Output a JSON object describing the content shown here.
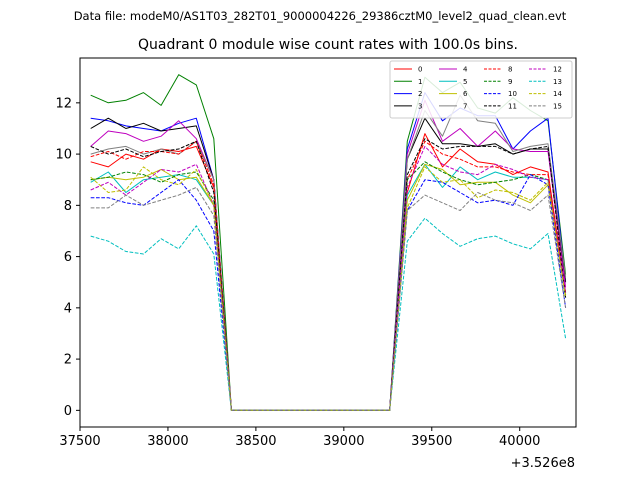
{
  "header_text": "Data file: modeM0/AS1T03_282T01_9000004226_29386cztM0_level2_quad_clean.evt",
  "chart_data": {
    "type": "line",
    "title": "Quadrant 0 module wise count rates with 100.0s bins.",
    "xlabel": "",
    "ylabel": "",
    "x_offset_label": "+3.526e8",
    "xlim": [
      37500,
      40320
    ],
    "ylim": [
      -0.65,
      13.75
    ],
    "xticks": [
      37500,
      38000,
      38500,
      39000,
      39500,
      40000
    ],
    "yticks": [
      0,
      2,
      4,
      6,
      8,
      10,
      12
    ],
    "legend_position": "top-right",
    "grid": false,
    "x": [
      37561,
      37661,
      37761,
      37861,
      37961,
      38061,
      38161,
      38261,
      38361,
      38461,
      38561,
      38661,
      38761,
      38861,
      38961,
      39061,
      39161,
      39261,
      39361,
      39461,
      39561,
      39661,
      39761,
      39861,
      39961,
      40061,
      40161,
      40261
    ],
    "series": [
      {
        "name": "0",
        "color": "#ff0000",
        "dash": "solid",
        "values": [
          9.7,
          9.5,
          10.0,
          9.8,
          10.2,
          10.1,
          10.3,
          8.7,
          0,
          0,
          0,
          0,
          0,
          0,
          0,
          0,
          0,
          0,
          8.5,
          10.8,
          9.5,
          10.2,
          9.7,
          9.6,
          9.2,
          9.5,
          9.3,
          4.6
        ]
      },
      {
        "name": "1",
        "color": "#008000",
        "dash": "solid",
        "values": [
          12.3,
          12.0,
          12.1,
          12.4,
          11.9,
          13.1,
          12.7,
          10.6,
          0,
          0,
          0,
          0,
          0,
          0,
          0,
          0,
          0,
          0,
          10.5,
          13.0,
          12.4,
          12.8,
          11.8,
          11.6,
          12.2,
          11.7,
          11.3,
          5.3
        ]
      },
      {
        "name": "2",
        "color": "#0000ff",
        "dash": "solid",
        "values": [
          11.4,
          11.3,
          11.1,
          11.0,
          10.9,
          11.2,
          11.4,
          9.0,
          0,
          0,
          0,
          0,
          0,
          0,
          0,
          0,
          0,
          0,
          10.2,
          12.4,
          11.3,
          11.8,
          11.5,
          11.5,
          10.2,
          10.9,
          11.4,
          5.0
        ]
      },
      {
        "name": "3",
        "color": "#000000",
        "dash": "solid",
        "values": [
          11.0,
          11.4,
          11.0,
          11.2,
          10.9,
          11.0,
          11.1,
          9.0,
          0,
          0,
          0,
          0,
          0,
          0,
          0,
          0,
          0,
          0,
          9.8,
          11.4,
          10.4,
          10.4,
          10.3,
          10.4,
          10.0,
          10.2,
          10.2,
          5.0
        ]
      },
      {
        "name": "4",
        "color": "#bf00bf",
        "dash": "solid",
        "values": [
          10.3,
          10.9,
          10.8,
          10.5,
          10.7,
          11.3,
          10.6,
          9.0,
          0,
          0,
          0,
          0,
          0,
          0,
          0,
          0,
          0,
          0,
          10.0,
          12.1,
          10.5,
          11.0,
          10.3,
          10.9,
          10.2,
          10.1,
          10.1,
          4.8
        ]
      },
      {
        "name": "5",
        "color": "#00bfbf",
        "dash": "solid",
        "values": [
          8.9,
          9.3,
          8.5,
          9.0,
          9.1,
          9.2,
          9.0,
          8.0,
          0,
          0,
          0,
          0,
          0,
          0,
          0,
          0,
          0,
          0,
          8.4,
          9.6,
          8.7,
          9.5,
          9.0,
          9.3,
          9.1,
          9.1,
          9.0,
          4.4
        ]
      },
      {
        "name": "6",
        "color": "#bfbf00",
        "dash": "solid",
        "values": [
          9.0,
          9.1,
          9.0,
          9.1,
          9.4,
          9.0,
          9.1,
          8.0,
          0,
          0,
          0,
          0,
          0,
          0,
          0,
          0,
          0,
          0,
          8.2,
          9.6,
          9.4,
          8.8,
          8.9,
          8.9,
          8.4,
          8.1,
          8.8,
          4.5
        ]
      },
      {
        "name": "7",
        "color": "#808080",
        "dash": "solid",
        "values": [
          10.0,
          10.2,
          10.3,
          10.0,
          10.2,
          10.0,
          10.5,
          9.0,
          0,
          0,
          0,
          0,
          0,
          0,
          0,
          0,
          0,
          0,
          9.8,
          11.7,
          10.7,
          12.3,
          11.3,
          11.2,
          10.1,
          10.3,
          10.4,
          5.2
        ]
      },
      {
        "name": "8",
        "color": "#ff0000",
        "dash": "dashed",
        "values": [
          9.9,
          10.1,
          9.8,
          10.1,
          10.1,
          10.0,
          10.5,
          8.8,
          0,
          0,
          0,
          0,
          0,
          0,
          0,
          0,
          0,
          0,
          9.0,
          10.5,
          10.0,
          9.8,
          9.5,
          9.5,
          9.3,
          9.2,
          9.2,
          4.5
        ]
      },
      {
        "name": "9",
        "color": "#008000",
        "dash": "dashed",
        "values": [
          9.0,
          9.1,
          9.3,
          9.2,
          8.9,
          9.2,
          9.3,
          8.2,
          0,
          0,
          0,
          0,
          0,
          0,
          0,
          0,
          0,
          0,
          9.0,
          9.7,
          9.3,
          9.0,
          8.8,
          8.9,
          9.0,
          9.2,
          9.0,
          4.4
        ]
      },
      {
        "name": "10",
        "color": "#0000ff",
        "dash": "dashed",
        "values": [
          8.3,
          8.3,
          8.1,
          8.0,
          8.5,
          9.0,
          8.2,
          7.0,
          0,
          0,
          0,
          0,
          0,
          0,
          0,
          0,
          0,
          0,
          7.8,
          9.0,
          8.9,
          8.5,
          8.1,
          8.2,
          8.0,
          9.2,
          8.8,
          4.0
        ]
      },
      {
        "name": "11",
        "color": "#000000",
        "dash": "dashed",
        "values": [
          10.3,
          10.0,
          10.2,
          9.9,
          10.1,
          10.2,
          10.5,
          8.5,
          0,
          0,
          0,
          0,
          0,
          0,
          0,
          0,
          0,
          0,
          9.2,
          10.6,
          10.2,
          10.3,
          10.3,
          10.3,
          10.0,
          10.2,
          10.3,
          4.4
        ]
      },
      {
        "name": "12",
        "color": "#bf00bf",
        "dash": "dashed",
        "values": [
          8.6,
          8.9,
          8.4,
          8.9,
          9.4,
          9.3,
          9.6,
          8.0,
          0,
          0,
          0,
          0,
          0,
          0,
          0,
          0,
          0,
          0,
          8.7,
          10.3,
          9.6,
          9.3,
          9.2,
          9.6,
          9.4,
          9.1,
          9.0,
          4.6
        ]
      },
      {
        "name": "13",
        "color": "#00bfbf",
        "dash": "dashed",
        "values": [
          6.8,
          6.6,
          6.2,
          6.1,
          6.7,
          6.3,
          7.2,
          6.1,
          0,
          0,
          0,
          0,
          0,
          0,
          0,
          0,
          0,
          0,
          6.6,
          7.5,
          6.9,
          6.4,
          6.7,
          6.8,
          6.5,
          6.3,
          6.9,
          2.8
        ]
      },
      {
        "name": "14",
        "color": "#bfbf00",
        "dash": "dashed",
        "values": [
          9.1,
          8.5,
          8.6,
          9.5,
          9.0,
          8.8,
          9.4,
          8.0,
          0,
          0,
          0,
          0,
          0,
          0,
          0,
          0,
          0,
          0,
          7.9,
          9.5,
          8.9,
          9.0,
          8.3,
          8.6,
          8.5,
          8.2,
          8.9,
          4.4
        ]
      },
      {
        "name": "15",
        "color": "#808080",
        "dash": "dashed",
        "values": [
          7.9,
          7.9,
          8.4,
          8.0,
          8.2,
          8.4,
          8.7,
          7.6,
          0,
          0,
          0,
          0,
          0,
          0,
          0,
          0,
          0,
          0,
          7.8,
          8.4,
          8.1,
          7.8,
          8.5,
          8.2,
          8.1,
          7.8,
          8.4,
          4.0
        ]
      }
    ]
  }
}
